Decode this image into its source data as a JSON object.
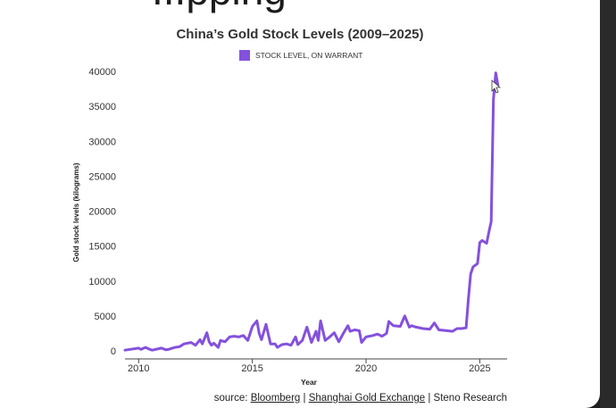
{
  "background_text": "...pping",
  "chart_data": {
    "type": "line",
    "title": "China’s Gold Stock Levels (2009–2025)",
    "xlabel": "Year",
    "ylabel": "Gold stock levels (kilograms)",
    "xlim": [
      2009.4,
      2026.2
    ],
    "ylim": [
      0,
      40000
    ],
    "yticks": [
      0,
      5000,
      10000,
      15000,
      20000,
      25000,
      30000,
      35000,
      40000
    ],
    "xticks": [
      2010,
      2015,
      2020,
      2025
    ],
    "grid": false,
    "legend_position": "top-center",
    "series": [
      {
        "name": "STOCK LEVEL, ON WARRANT",
        "color": "#8451DD",
        "x": [
          2009.4,
          2009.8,
          2010.0,
          2010.1,
          2010.3,
          2010.5,
          2010.6,
          2011.0,
          2011.2,
          2011.3,
          2011.6,
          2011.8,
          2012.0,
          2012.3,
          2012.5,
          2012.7,
          2012.8,
          2013.0,
          2013.1,
          2013.2,
          2013.3,
          2013.5,
          2013.6,
          2013.8,
          2014.0,
          2014.2,
          2014.4,
          2014.6,
          2014.8,
          2015.0,
          2015.2,
          2015.3,
          2015.4,
          2015.6,
          2015.8,
          2016.0,
          2016.1,
          2016.3,
          2016.5,
          2016.7,
          2016.9,
          2017.0,
          2017.2,
          2017.4,
          2017.6,
          2017.8,
          2017.9,
          2018.0,
          2018.2,
          2018.4,
          2018.6,
          2018.8,
          2019.0,
          2019.2,
          2019.3,
          2019.5,
          2019.7,
          2019.8,
          2020.0,
          2020.3,
          2020.5,
          2020.7,
          2020.9,
          2021.0,
          2021.2,
          2021.5,
          2021.7,
          2021.9,
          2022.0,
          2022.2,
          2022.5,
          2022.8,
          2023.0,
          2023.2,
          2023.5,
          2023.8,
          2024.0,
          2024.2,
          2024.4,
          2024.5,
          2024.6,
          2024.7,
          2024.9,
          2025.0,
          2025.1,
          2025.3,
          2025.4,
          2025.5,
          2025.6,
          2025.7,
          2025.8
        ],
        "values": [
          100,
          300,
          400,
          200,
          500,
          200,
          100,
          400,
          150,
          200,
          500,
          600,
          1000,
          1200,
          800,
          1600,
          1000,
          2600,
          1300,
          800,
          1100,
          500,
          1500,
          1300,
          2000,
          2100,
          2000,
          2200,
          1500,
          3500,
          4300,
          2500,
          1600,
          3800,
          1000,
          1000,
          500,
          900,
          1000,
          800,
          2000,
          900,
          1500,
          3400,
          1200,
          2800,
          1500,
          4300,
          1500,
          2000,
          2600,
          1300,
          2500,
          3600,
          2800,
          3000,
          2900,
          1200,
          2000,
          2200,
          2400,
          2100,
          2500,
          4200,
          3600,
          3500,
          5000,
          3400,
          3600,
          3400,
          3200,
          3100,
          4000,
          3000,
          2900,
          2800,
          3200,
          3200,
          3300,
          7500,
          11000,
          12000,
          12500,
          15500,
          15800,
          15400,
          17000,
          18500,
          36000,
          39800,
          38000
        ]
      }
    ]
  },
  "source": {
    "prefix": "source: ",
    "link1": "Bloomberg",
    "sep1": " | ",
    "link2": "Shanghai Gold Exchange",
    "sep2": " | ",
    "suffix": "Steno Research"
  }
}
